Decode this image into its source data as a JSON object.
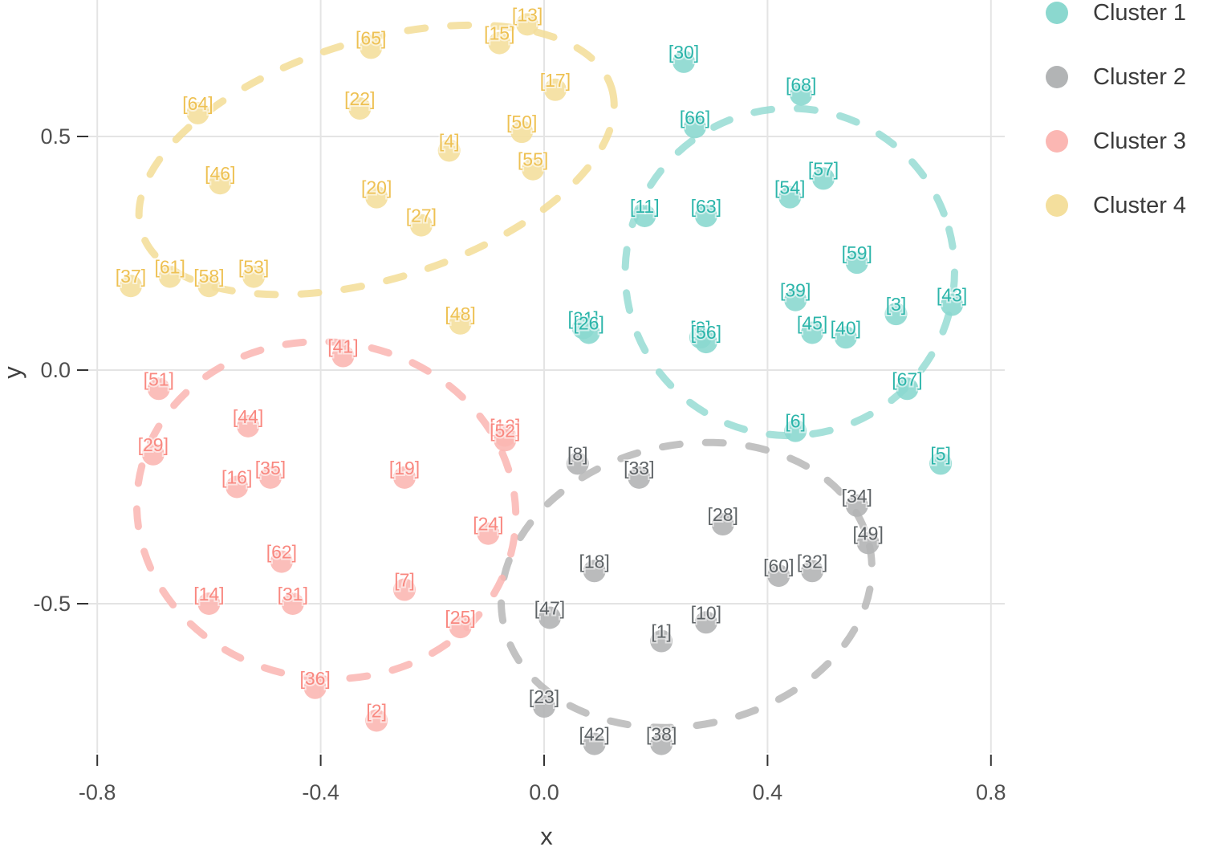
{
  "chart_data": {
    "type": "scatter",
    "title": "",
    "xlabel": "x",
    "ylabel": "y",
    "grid": true,
    "legend_position": "right",
    "xlim": [
      -0.82,
      0.82
    ],
    "ylim": [
      -0.81,
      0.79
    ],
    "x_ticks": [
      "-0.8",
      "-0.4",
      "0.0",
      "0.4",
      "0.8"
    ],
    "y_ticks": [
      "0.5",
      "0.0",
      "-0.5"
    ],
    "x_tick_values": [
      -0.8,
      -0.4,
      0.0,
      0.4,
      0.8
    ],
    "y_tick_values": [
      0.5,
      0.0,
      -0.5
    ],
    "series": [
      {
        "name": "Cluster 1",
        "text_color": "#2cb5aa",
        "dot_color": "#8bd8cf",
        "ellipse_color": "#96dcd4",
        "ellipse": {
          "cx": 0.44,
          "cy": 0.21,
          "rx": 0.295,
          "ry": 0.35,
          "angle": -15
        },
        "points": [
          {
            "label": "[30]",
            "x": 0.25,
            "y": 0.66
          },
          {
            "label": "[68]",
            "x": 0.46,
            "y": 0.59
          },
          {
            "label": "[66]",
            "x": 0.27,
            "y": 0.52
          },
          {
            "label": "[11]",
            "x": 0.18,
            "y": 0.33
          },
          {
            "label": "[63]",
            "x": 0.29,
            "y": 0.33
          },
          {
            "label": "[54]",
            "x": 0.44,
            "y": 0.37
          },
          {
            "label": "[57]",
            "x": 0.5,
            "y": 0.41
          },
          {
            "label": "[59]",
            "x": 0.56,
            "y": 0.23
          },
          {
            "label": "[39]",
            "x": 0.45,
            "y": 0.15
          },
          {
            "label": "[43]",
            "x": 0.73,
            "y": 0.14
          },
          {
            "label": "[3]",
            "x": 0.63,
            "y": 0.12
          },
          {
            "label": "[45]",
            "x": 0.48,
            "y": 0.08
          },
          {
            "label": "[40]",
            "x": 0.54,
            "y": 0.07
          },
          {
            "label": "[21]",
            "x": 0.07,
            "y": 0.09
          },
          {
            "label": "[26]",
            "x": 0.08,
            "y": 0.08
          },
          {
            "label": "[9]",
            "x": 0.28,
            "y": 0.07
          },
          {
            "label": "[56]",
            "x": 0.29,
            "y": 0.06
          },
          {
            "label": "[67]",
            "x": 0.65,
            "y": -0.04
          },
          {
            "label": "[6]",
            "x": 0.45,
            "y": -0.13
          },
          {
            "label": "[5]",
            "x": 0.71,
            "y": -0.2
          }
        ]
      },
      {
        "name": "Cluster 2",
        "text_color": "#5e6366",
        "dot_color": "#b2b4b5",
        "ellipse_color": "#b7b7b7",
        "ellipse": {
          "cx": 0.255,
          "cy": -0.46,
          "rx": 0.335,
          "ry": 0.3,
          "angle": -12
        },
        "points": [
          {
            "label": "[8]",
            "x": 0.06,
            "y": -0.2
          },
          {
            "label": "[33]",
            "x": 0.17,
            "y": -0.23
          },
          {
            "label": "[28]",
            "x": 0.32,
            "y": -0.33
          },
          {
            "label": "[34]",
            "x": 0.56,
            "y": -0.29
          },
          {
            "label": "[49]",
            "x": 0.58,
            "y": -0.37
          },
          {
            "label": "[18]",
            "x": 0.09,
            "y": -0.43
          },
          {
            "label": "[32]",
            "x": 0.48,
            "y": -0.43
          },
          {
            "label": "[60]",
            "x": 0.42,
            "y": -0.44
          },
          {
            "label": "[47]",
            "x": 0.01,
            "y": -0.53
          },
          {
            "label": "[10]",
            "x": 0.29,
            "y": -0.54
          },
          {
            "label": "[1]",
            "x": 0.21,
            "y": -0.58
          },
          {
            "label": "[23]",
            "x": 0.0,
            "y": -0.72
          },
          {
            "label": "[42]",
            "x": 0.09,
            "y": -0.8
          },
          {
            "label": "[38]",
            "x": 0.21,
            "y": -0.8
          }
        ]
      },
      {
        "name": "Cluster 3",
        "text_color": "#f98880",
        "dot_color": "#fbb7b3",
        "ellipse_color": "#fab5b1",
        "ellipse": {
          "cx": -0.39,
          "cy": -0.3,
          "rx": 0.34,
          "ry": 0.36,
          "angle": 8
        },
        "points": [
          {
            "label": "[41]",
            "x": -0.36,
            "y": 0.03
          },
          {
            "label": "[51]",
            "x": -0.69,
            "y": -0.04
          },
          {
            "label": "[44]",
            "x": -0.53,
            "y": -0.12
          },
          {
            "label": "[12]",
            "x": -0.07,
            "y": -0.14
          },
          {
            "label": "[52]",
            "x": -0.07,
            "y": -0.15
          },
          {
            "label": "[29]",
            "x": -0.7,
            "y": -0.18
          },
          {
            "label": "[19]",
            "x": -0.25,
            "y": -0.23
          },
          {
            "label": "[35]",
            "x": -0.49,
            "y": -0.23
          },
          {
            "label": "[16]",
            "x": -0.55,
            "y": -0.25
          },
          {
            "label": "[24]",
            "x": -0.1,
            "y": -0.35
          },
          {
            "label": "[62]",
            "x": -0.47,
            "y": -0.41
          },
          {
            "label": "[7]",
            "x": -0.25,
            "y": -0.47
          },
          {
            "label": "[14]",
            "x": -0.6,
            "y": -0.5
          },
          {
            "label": "[31]",
            "x": -0.45,
            "y": -0.5
          },
          {
            "label": "[25]",
            "x": -0.15,
            "y": -0.55
          },
          {
            "label": "[36]",
            "x": -0.41,
            "y": -0.68
          },
          {
            "label": "[2]",
            "x": -0.3,
            "y": -0.75
          }
        ]
      },
      {
        "name": "Cluster 4",
        "text_color": "#eec153",
        "dot_color": "#f4df9d",
        "ellipse_color": "#f3dd97",
        "ellipse": {
          "cx": -0.3,
          "cy": 0.45,
          "rx": 0.44,
          "ry": 0.255,
          "angle": -17
        },
        "points": [
          {
            "label": "[13]",
            "x": -0.03,
            "y": 0.74
          },
          {
            "label": "[15]",
            "x": -0.08,
            "y": 0.7
          },
          {
            "label": "[65]",
            "x": -0.31,
            "y": 0.69
          },
          {
            "label": "[17]",
            "x": 0.02,
            "y": 0.6
          },
          {
            "label": "[64]",
            "x": -0.62,
            "y": 0.55
          },
          {
            "label": "[22]",
            "x": -0.33,
            "y": 0.56
          },
          {
            "label": "[50]",
            "x": -0.04,
            "y": 0.51
          },
          {
            "label": "[4]",
            "x": -0.17,
            "y": 0.47
          },
          {
            "label": "[55]",
            "x": -0.02,
            "y": 0.43
          },
          {
            "label": "[46]",
            "x": -0.58,
            "y": 0.4
          },
          {
            "label": "[20]",
            "x": -0.3,
            "y": 0.37
          },
          {
            "label": "[27]",
            "x": -0.22,
            "y": 0.31
          },
          {
            "label": "[53]",
            "x": -0.52,
            "y": 0.2
          },
          {
            "label": "[61]",
            "x": -0.67,
            "y": 0.2
          },
          {
            "label": "[58]",
            "x": -0.6,
            "y": 0.18
          },
          {
            "label": "[37]",
            "x": -0.74,
            "y": 0.18
          },
          {
            "label": "[48]",
            "x": -0.15,
            "y": 0.1
          }
        ]
      }
    ]
  }
}
